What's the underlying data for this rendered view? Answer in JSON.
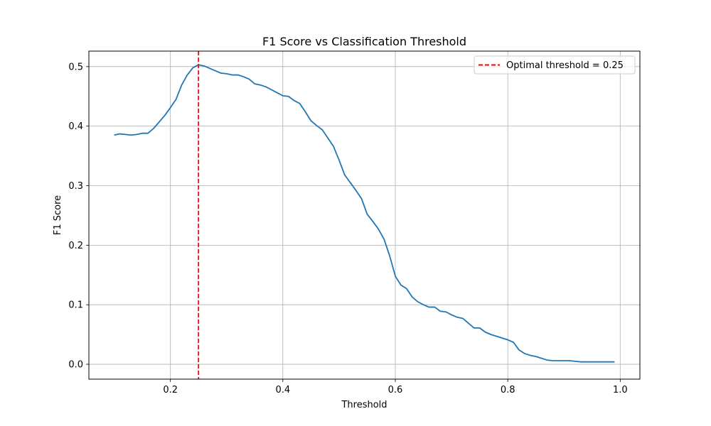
{
  "chart_data": {
    "type": "line",
    "title": "F1 Score vs Classification Threshold",
    "xlabel": "Threshold",
    "ylabel": "F1 Score",
    "xlim": [
      0.055,
      1.035
    ],
    "ylim": [
      -0.025,
      0.526
    ],
    "xticks": [
      0.2,
      0.4,
      0.6,
      0.8,
      1.0
    ],
    "xtick_labels": [
      "0.2",
      "0.4",
      "0.6",
      "0.8",
      "1.0"
    ],
    "yticks": [
      0.0,
      0.1,
      0.2,
      0.3,
      0.4,
      0.5
    ],
    "ytick_labels": [
      "0.0",
      "0.1",
      "0.2",
      "0.3",
      "0.4",
      "0.5"
    ],
    "grid": true,
    "legend_position": "top-right",
    "series": [
      {
        "color": "#1f77b4",
        "x": [
          0.1,
          0.11,
          0.12,
          0.13,
          0.14,
          0.15,
          0.16,
          0.17,
          0.18,
          0.19,
          0.2,
          0.21,
          0.22,
          0.23,
          0.24,
          0.25,
          0.26,
          0.27,
          0.28,
          0.29,
          0.3,
          0.31,
          0.32,
          0.33,
          0.34,
          0.35,
          0.36,
          0.37,
          0.38,
          0.39,
          0.4,
          0.41,
          0.42,
          0.43,
          0.44,
          0.45,
          0.46,
          0.47,
          0.48,
          0.49,
          0.5,
          0.51,
          0.52,
          0.53,
          0.54,
          0.55,
          0.56,
          0.57,
          0.58,
          0.59,
          0.6,
          0.61,
          0.62,
          0.63,
          0.64,
          0.65,
          0.66,
          0.67,
          0.68,
          0.69,
          0.7,
          0.71,
          0.72,
          0.73,
          0.74,
          0.75,
          0.76,
          0.77,
          0.78,
          0.79,
          0.8,
          0.81,
          0.82,
          0.83,
          0.84,
          0.85,
          0.86,
          0.87,
          0.88,
          0.89,
          0.9,
          0.91,
          0.92,
          0.93,
          0.94,
          0.95,
          0.96,
          0.97,
          0.98,
          0.99
        ],
        "values": [
          0.385,
          0.387,
          0.386,
          0.385,
          0.386,
          0.388,
          0.388,
          0.396,
          0.407,
          0.418,
          0.431,
          0.445,
          0.469,
          0.486,
          0.498,
          0.503,
          0.501,
          0.497,
          0.493,
          0.489,
          0.488,
          0.486,
          0.486,
          0.483,
          0.479,
          0.471,
          0.469,
          0.466,
          0.461,
          0.456,
          0.451,
          0.45,
          0.443,
          0.438,
          0.424,
          0.409,
          0.401,
          0.394,
          0.38,
          0.366,
          0.343,
          0.318,
          0.305,
          0.292,
          0.278,
          0.252,
          0.24,
          0.227,
          0.21,
          0.182,
          0.148,
          0.133,
          0.127,
          0.113,
          0.105,
          0.1,
          0.096,
          0.096,
          0.089,
          0.088,
          0.083,
          0.079,
          0.077,
          0.069,
          0.061,
          0.061,
          0.054,
          0.05,
          0.047,
          0.044,
          0.041,
          0.037,
          0.024,
          0.018,
          0.015,
          0.013,
          0.01,
          0.007,
          0.006,
          0.006,
          0.006,
          0.006,
          0.005,
          0.004,
          0.004,
          0.004,
          0.004,
          0.004,
          0.004,
          0.004
        ]
      }
    ],
    "reference_line": {
      "orientation": "vertical",
      "x": 0.25,
      "color": "#ff0000",
      "style": "dashed",
      "label": "Optimal threshold = 0.25"
    }
  }
}
